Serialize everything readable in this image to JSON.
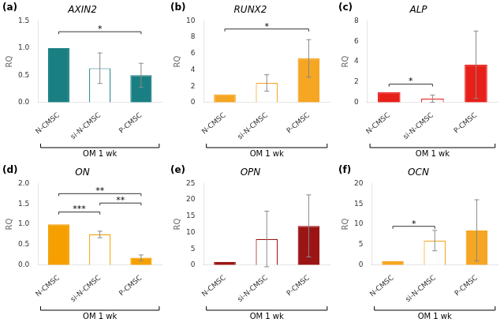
{
  "chart_data": [
    {
      "type": "bar",
      "panel_label": "(a)",
      "title": "AXIN2",
      "y_label": "RQ",
      "x_label": "OM 1 wk",
      "categories": [
        "N-CMSC",
        "si-N-CMSC",
        "P-CMSC"
      ],
      "values": [
        1.0,
        0.63,
        0.5
      ],
      "errors": [
        0.0,
        0.28,
        0.22
      ],
      "colors": [
        "#1a7f82",
        "#ffffff",
        "#1a7f82"
      ],
      "color": "#1a7f82",
      "ylim": [
        0,
        1.5
      ],
      "yticks": [
        {
          "value": 0.0,
          "label": "0.0"
        },
        0.5,
        {
          "value": 1.0,
          "label": "1.0"
        },
        1.5
      ],
      "grid": false,
      "annotations": [
        {
          "text": "*",
          "x1": "N-CMSC",
          "x2": "P-CMSC",
          "y": 1.3
        }
      ]
    },
    {
      "type": "bar",
      "panel_label": "(b)",
      "title": "RUNX2",
      "y_label": "RQ",
      "x_label": "OM 1 wk",
      "categories": [
        "N-CMSC",
        "si-N-CMSC",
        "P-CMSC"
      ],
      "values": [
        1.0,
        2.4,
        5.4
      ],
      "errors": [
        0.0,
        1.0,
        2.3
      ],
      "colors": [
        "#f5a623",
        "#ffffff",
        "#f5a623"
      ],
      "color": "#f5a623",
      "ylim": [
        0,
        10.0
      ],
      "yticks": [
        0,
        2,
        4,
        6,
        8,
        10
      ],
      "grid": false,
      "annotations": [
        {
          "text": "*",
          "x1": "N-CMSC",
          "x2": "P-CMSC",
          "y": 9.0
        }
      ]
    },
    {
      "type": "bar",
      "panel_label": "(c)",
      "title": "ALP",
      "y_label": "RQ",
      "x_label": "OM 1 wk",
      "categories": [
        "N-CMSC",
        "si-N-CMSC",
        "P-CMSC"
      ],
      "values": [
        1.0,
        0.38,
        3.7
      ],
      "errors": [
        0.0,
        0.35,
        3.3
      ],
      "colors": [
        "#e8201a",
        "#ffffff",
        "#e8201a"
      ],
      "color": "#e8201a",
      "ylim": [
        0,
        8.0
      ],
      "yticks": [
        0,
        2,
        4,
        6,
        8
      ],
      "grid": false,
      "annotations": [
        {
          "text": "*",
          "x1": "N-CMSC",
          "x2": "si-N-CMSC",
          "y": 1.8
        }
      ]
    },
    {
      "type": "bar",
      "panel_label": "(d)",
      "title": "ON",
      "y_label": "RQ",
      "x_label": "OM 1 wk",
      "categories": [
        "N-CMSC",
        "si-N-CMSC",
        "P-CMSC"
      ],
      "values": [
        1.0,
        0.75,
        0.18
      ],
      "errors": [
        0.0,
        0.08,
        0.07
      ],
      "colors": [
        "#f5a000",
        "#ffffff",
        "#f5a000"
      ],
      "color": "#f5a000",
      "ylim": [
        0,
        2.0
      ],
      "yticks": [
        {
          "value": 0.0,
          "label": "0.0"
        },
        0.5,
        {
          "value": 1.0,
          "label": "1.0"
        },
        1.5,
        {
          "value": 2.0,
          "label": "2.0"
        }
      ],
      "grid": false,
      "annotations": [
        {
          "text": "***",
          "x1": "N-CMSC",
          "x2": "si-N-CMSC",
          "y": 1.3
        },
        {
          "text": "**",
          "x1": "si-N-CMSC",
          "x2": "P-CMSC",
          "y": 1.52
        },
        {
          "text": "**",
          "x1": "N-CMSC",
          "x2": "P-CMSC",
          "y": 1.75
        }
      ]
    },
    {
      "type": "bar",
      "panel_label": "(e)",
      "title": "OPN",
      "y_label": "RQ",
      "x_label": "OM 1 wk",
      "categories": [
        "N-CMSC",
        "si-N-CMSC",
        "P-CMSC"
      ],
      "values": [
        1.0,
        8.0,
        12.0
      ],
      "errors": [
        0.0,
        8.5,
        9.5
      ],
      "colors": [
        "#9b1515",
        "#ffffff",
        "#9b1515"
      ],
      "color": "#9b1515",
      "ylim": [
        0,
        25.0
      ],
      "yticks": [
        0,
        5,
        10,
        15,
        20,
        25
      ],
      "grid": false,
      "annotations": []
    },
    {
      "type": "bar",
      "panel_label": "(f)",
      "title": "OCN",
      "y_label": "RQ",
      "x_label": "OM 1 wk",
      "categories": [
        "N-CMSC",
        "si-N-CMSC",
        "P-CMSC"
      ],
      "values": [
        1.0,
        6.0,
        8.5
      ],
      "errors": [
        0.0,
        2.5,
        7.5
      ],
      "colors": [
        "#f5a623",
        "#ffffff",
        "#f5a623"
      ],
      "color": "#f5a623",
      "ylim": [
        0,
        20.0
      ],
      "yticks": [
        0,
        5,
        10,
        15,
        20
      ],
      "grid": false,
      "annotations": [
        {
          "text": "*",
          "x1": "N-CMSC",
          "x2": "si-N-CMSC",
          "y": 9.5
        }
      ]
    }
  ]
}
